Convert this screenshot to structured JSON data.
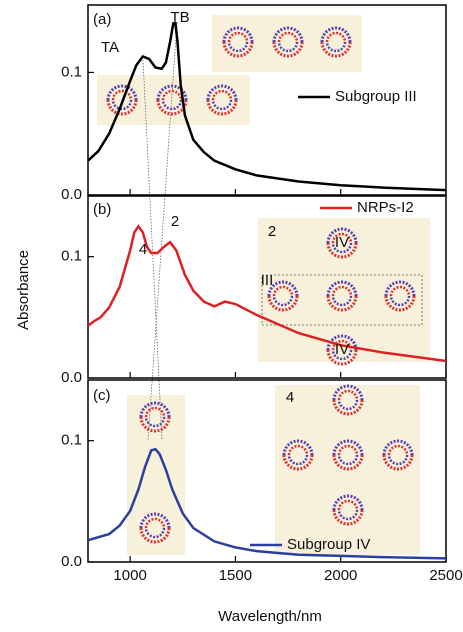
{
  "chart_data": [
    {
      "type": "line",
      "panel_label": "(a)",
      "x": [
        800,
        850,
        900,
        950,
        1000,
        1030,
        1060,
        1090,
        1120,
        1150,
        1170,
        1190,
        1205,
        1215,
        1225,
        1240,
        1260,
        1300,
        1350,
        1400,
        1500,
        1600,
        1800,
        2000,
        2200,
        2500
      ],
      "series": [
        {
          "name": "Subgroup III",
          "color": "#000000",
          "values": [
            0.028,
            0.036,
            0.05,
            0.07,
            0.093,
            0.106,
            0.113,
            0.111,
            0.104,
            0.103,
            0.108,
            0.125,
            0.14,
            0.14,
            0.125,
            0.09,
            0.065,
            0.045,
            0.035,
            0.028,
            0.021,
            0.016,
            0.011,
            0.008,
            0.006,
            0.004
          ]
        }
      ],
      "annotations": [
        "TA",
        "TB"
      ],
      "xlim": [
        800,
        2500
      ],
      "xticks": [
        1000,
        1500,
        2000,
        2500
      ],
      "ylim": [
        0,
        0.155
      ],
      "yticks": [
        {
          "value": 0,
          "label": "0.0"
        },
        0.1
      ]
    },
    {
      "type": "line",
      "panel_label": "(b)",
      "y_label": "Absorbance",
      "x": [
        800,
        830,
        860,
        900,
        950,
        1000,
        1020,
        1040,
        1060,
        1080,
        1100,
        1130,
        1160,
        1190,
        1220,
        1260,
        1300,
        1350,
        1400,
        1450,
        1500,
        1600,
        1800,
        2000,
        2200,
        2500
      ],
      "series": [
        {
          "name": "NRPs-I2",
          "color": "#e02020",
          "values": [
            0.043,
            0.047,
            0.05,
            0.058,
            0.075,
            0.105,
            0.12,
            0.125,
            0.12,
            0.108,
            0.103,
            0.103,
            0.108,
            0.112,
            0.105,
            0.085,
            0.072,
            0.063,
            0.059,
            0.063,
            0.061,
            0.052,
            0.037,
            0.027,
            0.021,
            0.014
          ]
        }
      ],
      "annotations": [
        "4",
        "2",
        "2",
        "IV",
        "III",
        "IV"
      ],
      "xlim": [
        800,
        2500
      ],
      "xticks": [
        1000,
        1500,
        2000,
        2500
      ],
      "ylim": [
        0,
        0.15
      ],
      "yticks": [
        {
          "value": 0,
          "label": "0.0"
        },
        0.1
      ]
    },
    {
      "type": "line",
      "panel_label": "(c)",
      "x_label": "Wavelength/nm",
      "x": [
        800,
        900,
        950,
        1000,
        1040,
        1070,
        1100,
        1120,
        1140,
        1170,
        1200,
        1250,
        1300,
        1400,
        1500,
        1600,
        1800,
        2000,
        2200,
        2500
      ],
      "series": [
        {
          "name": "Subgroup IV",
          "color": "#2b3fa0",
          "values": [
            0.018,
            0.023,
            0.03,
            0.042,
            0.06,
            0.078,
            0.092,
            0.093,
            0.089,
            0.076,
            0.06,
            0.04,
            0.028,
            0.017,
            0.012,
            0.009,
            0.006,
            0.005,
            0.004,
            0.003
          ]
        }
      ],
      "annotations": [
        "4"
      ],
      "xlim": [
        800,
        2500
      ],
      "xticks": [
        1000,
        1500,
        2000,
        2500
      ],
      "ylim": [
        0,
        0.15
      ],
      "yticks": [
        {
          "value": 0,
          "label": "0.0"
        },
        0.1
      ]
    }
  ]
}
